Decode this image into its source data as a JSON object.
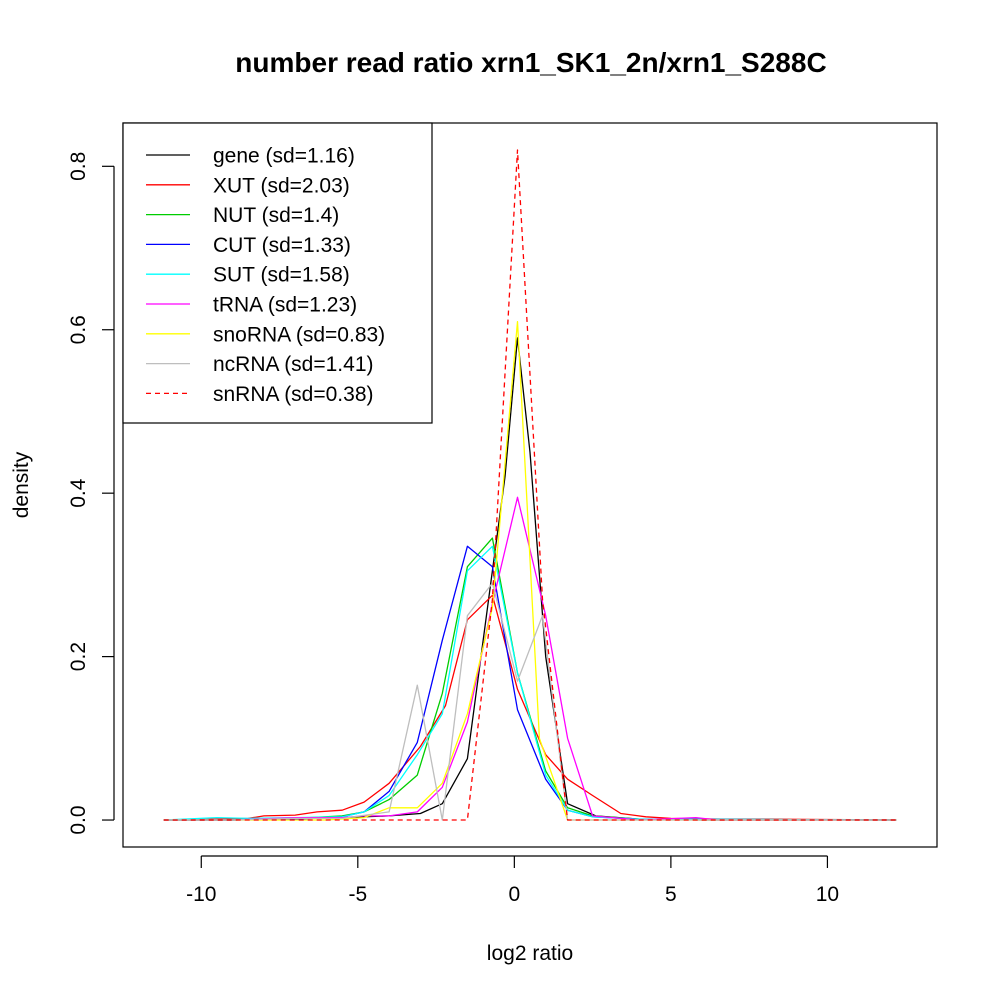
{
  "chart_data": {
    "type": "line",
    "title": "number read ratio xrn1_SK1_2n/xrn1_S288C",
    "xlabel": "log2 ratio",
    "ylabel": "density",
    "xlim": [
      -12.5,
      13.5
    ],
    "ylim": [
      -0.033,
      0.853
    ],
    "x_ticks": [
      -10,
      -5,
      0,
      5,
      10
    ],
    "x_tick_labels": [
      "-10",
      "-5",
      "0",
      "5",
      "10"
    ],
    "y_ticks": [
      0.0,
      0.2,
      0.4,
      0.6,
      0.8
    ],
    "y_tick_labels": [
      "0.0",
      "0.2",
      "0.4",
      "0.6",
      "0.8"
    ],
    "grid": false,
    "legend_position": "top-left",
    "series": [
      {
        "name": "gene (sd=1.16)",
        "color": "#000000",
        "dash": false,
        "points": [
          [
            -11.2,
            0
          ],
          [
            -9,
            0
          ],
          [
            -7,
            0.002
          ],
          [
            -5.5,
            0.003
          ],
          [
            -4,
            0.005
          ],
          [
            -3,
            0.008
          ],
          [
            -2.3,
            0.02
          ],
          [
            -1.5,
            0.075
          ],
          [
            -0.7,
            0.305
          ],
          [
            -0.3,
            0.42
          ],
          [
            0.1,
            0.59
          ],
          [
            0.5,
            0.45
          ],
          [
            1,
            0.2
          ],
          [
            1.7,
            0.02
          ],
          [
            2.6,
            0.005
          ],
          [
            4,
            0.001
          ],
          [
            6,
            0
          ],
          [
            12.2,
            0
          ]
        ]
      },
      {
        "name": "XUT (sd=2.03)",
        "color": "#ff0000",
        "dash": false,
        "points": [
          [
            -11.2,
            0
          ],
          [
            -9.5,
            0.001
          ],
          [
            -8.5,
            0.002
          ],
          [
            -8,
            0.005
          ],
          [
            -7,
            0.006
          ],
          [
            -6.3,
            0.01
          ],
          [
            -5.5,
            0.012
          ],
          [
            -4.8,
            0.022
          ],
          [
            -4,
            0.045
          ],
          [
            -3,
            0.09
          ],
          [
            -2.2,
            0.14
          ],
          [
            -1.5,
            0.245
          ],
          [
            -0.7,
            0.275
          ],
          [
            0.1,
            0.16
          ],
          [
            1,
            0.08
          ],
          [
            1.7,
            0.05
          ],
          [
            2.5,
            0.03
          ],
          [
            3.4,
            0.008
          ],
          [
            4.2,
            0.004
          ],
          [
            5,
            0.002
          ],
          [
            6.6,
            0.001
          ],
          [
            8,
            0.001
          ],
          [
            12.2,
            0
          ]
        ]
      },
      {
        "name": "NUT (sd=1.4)",
        "color": "#00cd00",
        "dash": false,
        "points": [
          [
            -11.2,
            0
          ],
          [
            -9,
            0
          ],
          [
            -7,
            0.002
          ],
          [
            -5.5,
            0.005
          ],
          [
            -4.8,
            0.01
          ],
          [
            -4,
            0.025
          ],
          [
            -3.1,
            0.055
          ],
          [
            -2.3,
            0.155
          ],
          [
            -1.5,
            0.31
          ],
          [
            -0.7,
            0.345
          ],
          [
            0.1,
            0.18
          ],
          [
            1,
            0.06
          ],
          [
            1.7,
            0.015
          ],
          [
            2.5,
            0.005
          ],
          [
            4,
            0.001
          ],
          [
            12.2,
            0
          ]
        ]
      },
      {
        "name": "CUT (sd=1.33)",
        "color": "#0000ff",
        "dash": false,
        "points": [
          [
            -11.2,
            0
          ],
          [
            -9,
            0
          ],
          [
            -7,
            0.001
          ],
          [
            -5.5,
            0.004
          ],
          [
            -4.8,
            0.01
          ],
          [
            -4,
            0.035
          ],
          [
            -3.1,
            0.095
          ],
          [
            -2.3,
            0.22
          ],
          [
            -1.5,
            0.335
          ],
          [
            -0.7,
            0.31
          ],
          [
            0.1,
            0.135
          ],
          [
            1,
            0.05
          ],
          [
            1.7,
            0.012
          ],
          [
            2.5,
            0.004
          ],
          [
            4,
            0.001
          ],
          [
            12.2,
            0
          ]
        ]
      },
      {
        "name": "SUT (sd=1.58)",
        "color": "#00ffff",
        "dash": false,
        "points": [
          [
            -11.2,
            0
          ],
          [
            -9.5,
            0.003
          ],
          [
            -8.5,
            0.002
          ],
          [
            -7,
            0.003
          ],
          [
            -5.5,
            0.004
          ],
          [
            -4.8,
            0.01
          ],
          [
            -4,
            0.03
          ],
          [
            -3.1,
            0.08
          ],
          [
            -2.3,
            0.13
          ],
          [
            -1.5,
            0.305
          ],
          [
            -0.7,
            0.335
          ],
          [
            0.1,
            0.18
          ],
          [
            1,
            0.055
          ],
          [
            1.7,
            0.012
          ],
          [
            2.5,
            0.004
          ],
          [
            4,
            0.001
          ],
          [
            12.2,
            0
          ]
        ]
      },
      {
        "name": "tRNA (sd=1.23)",
        "color": "#ff00ff",
        "dash": false,
        "points": [
          [
            -11.2,
            0
          ],
          [
            -9,
            0
          ],
          [
            -7,
            0.003
          ],
          [
            -5.5,
            0.003
          ],
          [
            -4.8,
            0.005
          ],
          [
            -4,
            0.005
          ],
          [
            -3.1,
            0.01
          ],
          [
            -2.3,
            0.04
          ],
          [
            -1.5,
            0.12
          ],
          [
            -0.7,
            0.265
          ],
          [
            0.1,
            0.395
          ],
          [
            1,
            0.25
          ],
          [
            1.7,
            0.1
          ],
          [
            2.5,
            0.005
          ],
          [
            4,
            0
          ],
          [
            5.8,
            0.003
          ],
          [
            6.5,
            0
          ],
          [
            12.2,
            0
          ]
        ]
      },
      {
        "name": "snoRNA (sd=0.83)",
        "color": "#ffff00",
        "dash": false,
        "points": [
          [
            -11.2,
            0
          ],
          [
            -6,
            0
          ],
          [
            -4.8,
            0.003
          ],
          [
            -4,
            0.015
          ],
          [
            -3.1,
            0.015
          ],
          [
            -2.3,
            0.045
          ],
          [
            -1.5,
            0.13
          ],
          [
            -0.7,
            0.26
          ],
          [
            0.1,
            0.61
          ],
          [
            0.8,
            0.1
          ],
          [
            1.7,
            0
          ],
          [
            12.2,
            0
          ]
        ]
      },
      {
        "name": "ncRNA (sd=1.41)",
        "color": "#bebebe",
        "dash": false,
        "points": [
          [
            -11.2,
            0
          ],
          [
            -9,
            0
          ],
          [
            -7,
            0.002
          ],
          [
            -5.5,
            0.002
          ],
          [
            -4,
            0.01
          ],
          [
            -3.1,
            0.165
          ],
          [
            -2.3,
            0
          ],
          [
            -1.5,
            0.25
          ],
          [
            -0.7,
            0.29
          ],
          [
            0.1,
            0.17
          ],
          [
            0.9,
            0.25
          ],
          [
            1.7,
            0
          ],
          [
            2.5,
            0
          ],
          [
            12.2,
            0
          ]
        ]
      },
      {
        "name": "snRNA (sd=0.38)",
        "color": "#ff0000",
        "dash": true,
        "points": [
          [
            -11.2,
            0
          ],
          [
            -1.5,
            0
          ],
          [
            -0.7,
            0.27
          ],
          [
            0.1,
            0.82
          ],
          [
            0.9,
            0.27
          ],
          [
            1.7,
            0
          ],
          [
            12.2,
            0
          ]
        ]
      }
    ]
  }
}
